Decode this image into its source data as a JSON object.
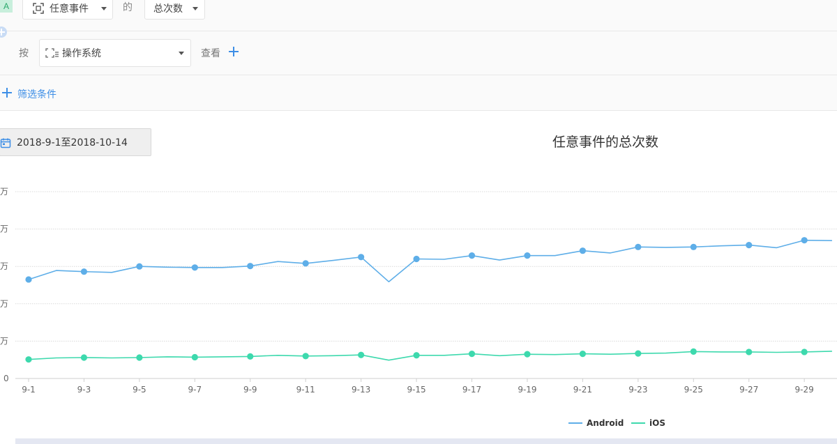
{
  "row1": {
    "badge": "A",
    "event_select": "任意事件",
    "connector": "的",
    "metric_select": "总次数"
  },
  "row2": {
    "group_label": "按",
    "group_select": "操作系统",
    "view_label": "查看"
  },
  "row3": {
    "filter_label": "筛选条件"
  },
  "date_range": "2018-9-1至2018-10-14",
  "chart_title": "任意事件的总次数",
  "colors": {
    "android": "#5eaee8",
    "ios": "#3dd9ad",
    "accent": "#3d8ee6"
  },
  "chart_data": {
    "type": "line",
    "title": "任意事件的总次数",
    "y_tick_labels": [
      "0",
      "万",
      "万",
      "万",
      "万",
      "万"
    ],
    "ylim": [
      0,
      5
    ],
    "grid": true,
    "legend_position": "bottom-right",
    "x": [
      "9-1",
      "9-2",
      "9-3",
      "9-4",
      "9-5",
      "9-6",
      "9-7",
      "9-8",
      "9-9",
      "9-10",
      "9-11",
      "9-12",
      "9-13",
      "9-14",
      "9-15",
      "9-16",
      "9-17",
      "9-18",
      "9-19",
      "9-20",
      "9-21",
      "9-22",
      "9-23",
      "9-24",
      "9-25",
      "9-26",
      "9-27",
      "9-28",
      "9-29",
      "9-30"
    ],
    "x_tick_labels": [
      "9-1",
      "9-3",
      "9-5",
      "9-7",
      "9-9",
      "9-11",
      "9-13",
      "9-15",
      "9-17",
      "9-19",
      "9-21",
      "9-23",
      "9-25",
      "9-27",
      "9-29"
    ],
    "series": [
      {
        "name": "Android",
        "color": "#5eaee8",
        "values": [
          2.65,
          2.89,
          2.86,
          2.84,
          3.0,
          2.98,
          2.97,
          2.97,
          3.01,
          3.13,
          3.08,
          3.16,
          3.25,
          2.59,
          3.2,
          3.19,
          3.29,
          3.17,
          3.29,
          3.29,
          3.42,
          3.36,
          3.52,
          3.51,
          3.52,
          3.55,
          3.57,
          3.5,
          3.7,
          3.69
        ]
      },
      {
        "name": "iOS",
        "color": "#3dd9ad",
        "values": [
          0.51,
          0.55,
          0.56,
          0.55,
          0.56,
          0.58,
          0.57,
          0.58,
          0.59,
          0.62,
          0.6,
          0.61,
          0.63,
          0.49,
          0.62,
          0.62,
          0.66,
          0.61,
          0.65,
          0.64,
          0.66,
          0.65,
          0.67,
          0.68,
          0.72,
          0.71,
          0.71,
          0.7,
          0.71,
          0.73
        ]
      }
    ]
  }
}
